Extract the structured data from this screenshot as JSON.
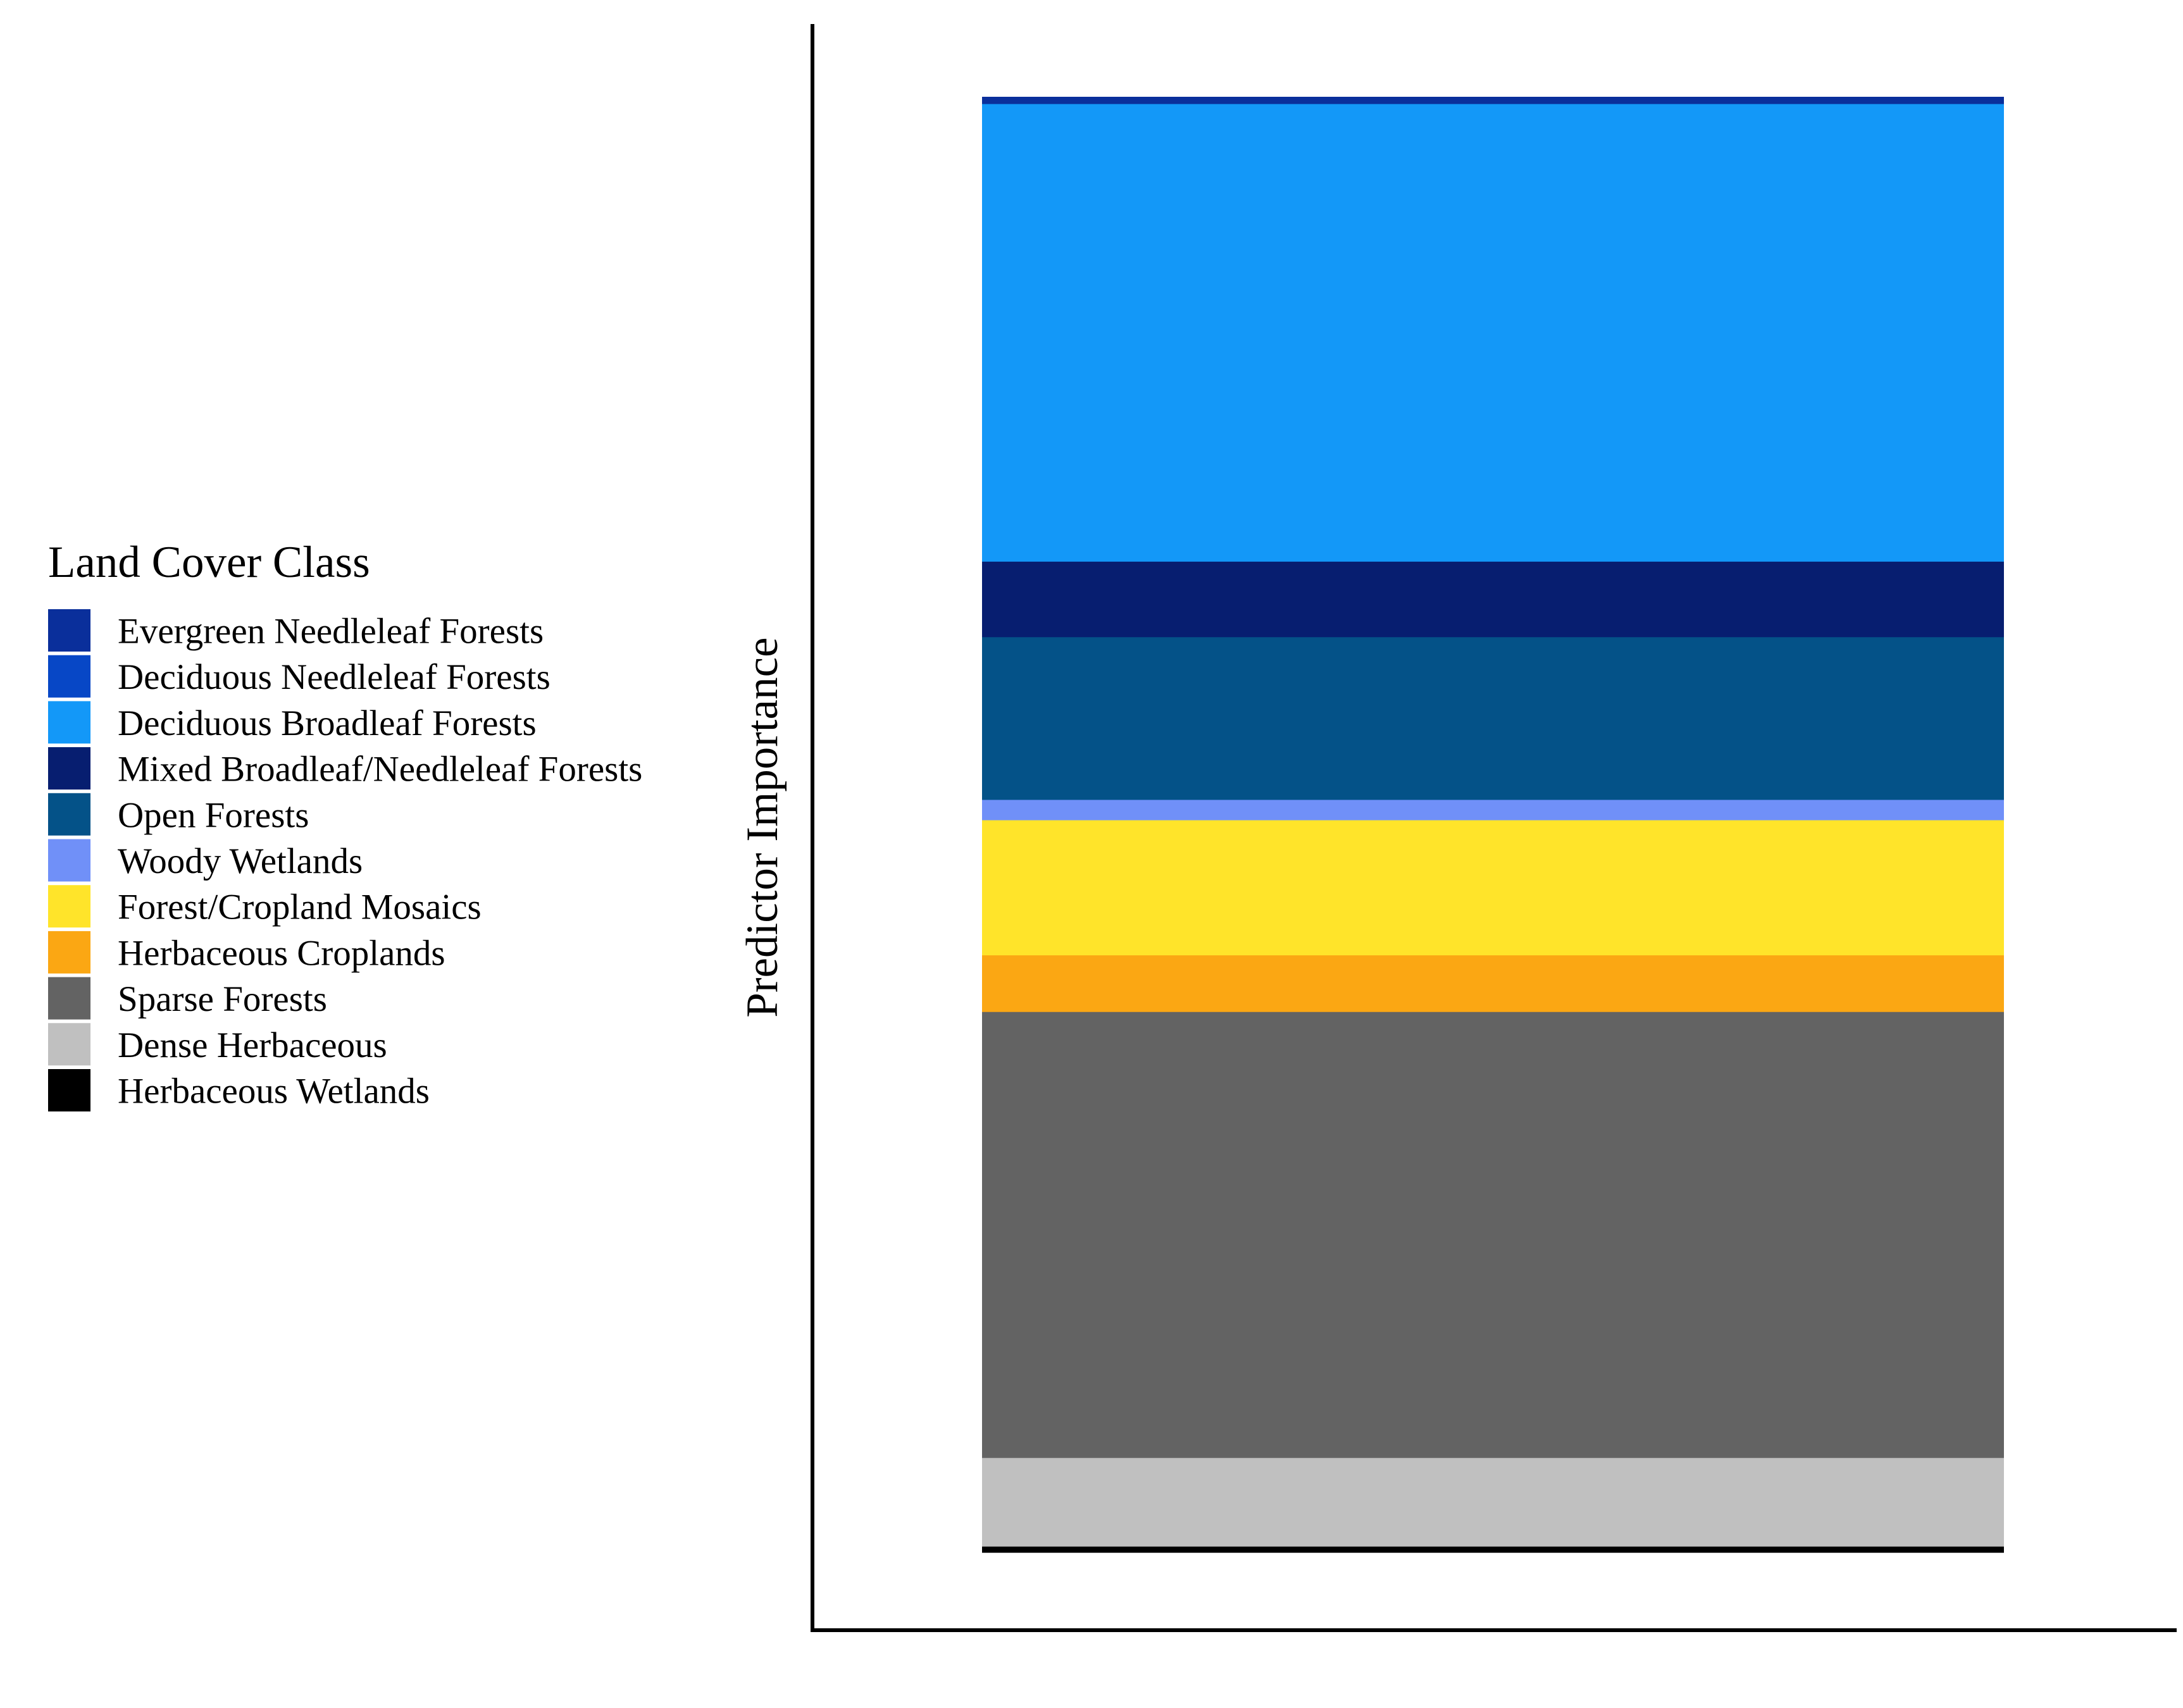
{
  "chart_data": {
    "type": "bar",
    "stacked": true,
    "ylabel": "Predictor Importance",
    "xlabel": "",
    "ylim": [
      0,
      100
    ],
    "grid": false,
    "legend": {
      "title": "Land Cover Class",
      "placement": "left"
    },
    "series": [
      {
        "name": "Evergreen Needleleaf Forests",
        "value": 0.5,
        "color": "#0A2F9B"
      },
      {
        "name": "Deciduous Needleleaf Forests",
        "value": 0.0,
        "color": "#0747C6"
      },
      {
        "name": "Deciduous Broadleaf Forests",
        "value": 31.5,
        "color": "#1398F8"
      },
      {
        "name": "Mixed Broadleaf/Needleleaf Forests",
        "value": 5.2,
        "color": "#071E70"
      },
      {
        "name": "Open Forests",
        "value": 11.2,
        "color": "#045288"
      },
      {
        "name": "Woody Wetlands",
        "value": 1.4,
        "color": "#7090F8"
      },
      {
        "name": "Forest/Cropland Mosaics",
        "value": 9.3,
        "color": "#FFE42A"
      },
      {
        "name": "Herbaceous Croplands",
        "value": 3.9,
        "color": "#FBA713"
      },
      {
        "name": "Sparse Forests",
        "value": 30.7,
        "color": "#636363"
      },
      {
        "name": "Dense Herbaceous",
        "value": 6.1,
        "color": "#C0C0C0"
      },
      {
        "name": "Herbaceous Wetlands",
        "value": 0.4,
        "color": "#000000"
      }
    ]
  }
}
